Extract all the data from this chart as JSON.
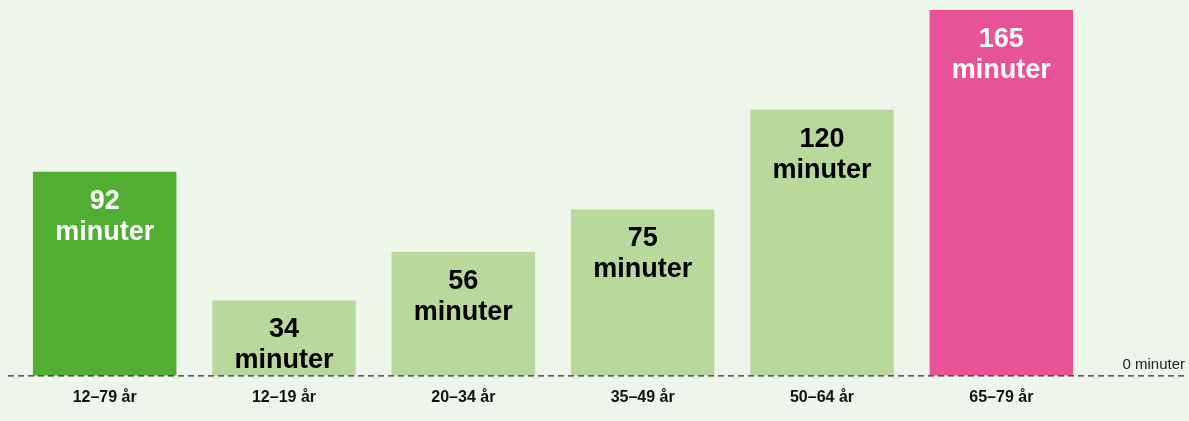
{
  "chart_data": {
    "type": "bar",
    "categories": [
      "12–79 år",
      "12–19 år",
      "20–34 år",
      "35–49 år",
      "50–64 år",
      "65–79 år"
    ],
    "values": [
      92,
      34,
      56,
      75,
      120,
      165
    ],
    "colors": [
      "#52ae32",
      "#b8d89c",
      "#b8d89c",
      "#b8d89c",
      "#b8d89c",
      "#e85397"
    ],
    "value_labels": [
      "92 minuter",
      "34 minuter",
      "56 minuter",
      "75 minuter",
      "120 minuter",
      "165 minuter"
    ],
    "ylim": [
      0,
      165
    ],
    "ref_lines": [
      {
        "axis": "y",
        "value": 0,
        "label": "0 minuter",
        "color": "#333333",
        "line_style": "dashed"
      }
    ],
    "grid": false,
    "legend": false
  }
}
